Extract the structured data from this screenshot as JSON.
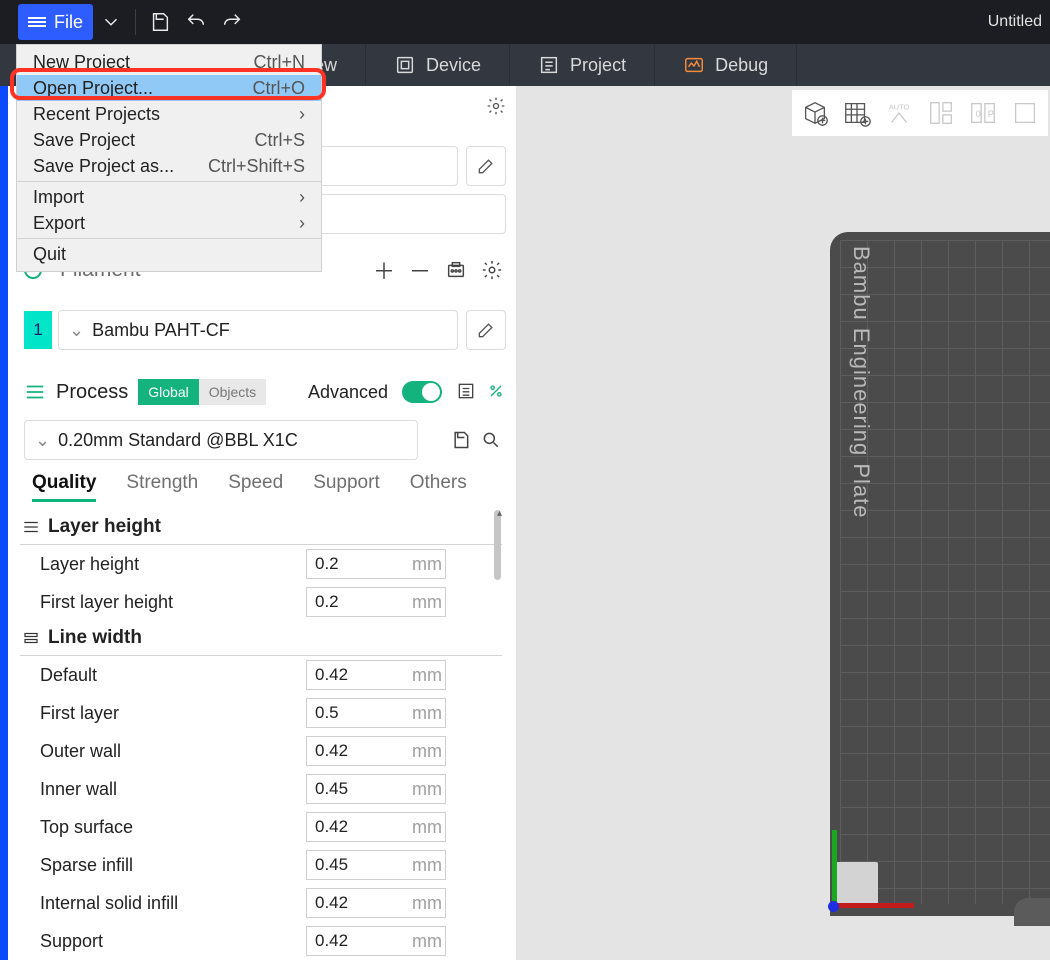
{
  "window": {
    "title": "Untitled"
  },
  "topbar": {
    "file_label": "File"
  },
  "file_menu": {
    "items": [
      {
        "label": "New Project",
        "shortcut": "Ctrl+N",
        "sub": false
      },
      {
        "label": "Open Project...",
        "shortcut": "Ctrl+O",
        "sub": false,
        "highlight": true
      },
      {
        "label": "Recent Projects",
        "shortcut": "",
        "sub": true
      },
      {
        "label": "Save Project",
        "shortcut": "Ctrl+S",
        "sub": false
      },
      {
        "label": "Save Project as...",
        "shortcut": "Ctrl+Shift+S",
        "sub": false
      },
      "---",
      {
        "label": "Import",
        "shortcut": "",
        "sub": true
      },
      {
        "label": "Export",
        "shortcut": "",
        "sub": true
      },
      "---",
      {
        "label": "Quit",
        "shortcut": "",
        "sub": false
      }
    ]
  },
  "nav": {
    "items": [
      {
        "label": "ew"
      },
      {
        "label": "Device"
      },
      {
        "label": "Project"
      },
      {
        "label": "Debug"
      }
    ]
  },
  "sidebar": {
    "filament_header": "Filament",
    "filament_index": "1",
    "filament_name": "Bambu PAHT-CF",
    "process_header": "Process",
    "pill_global": "Global",
    "pill_objects": "Objects",
    "advanced_label": "Advanced",
    "preset": "0.20mm Standard @BBL X1C",
    "tabs": [
      "Quality",
      "Strength",
      "Speed",
      "Support",
      "Others"
    ],
    "active_tab": 0,
    "sections": [
      {
        "title": "Layer height",
        "rows": [
          {
            "label": "Layer height",
            "value": "0.2",
            "unit": "mm"
          },
          {
            "label": "First layer height",
            "value": "0.2",
            "unit": "mm"
          }
        ]
      },
      {
        "title": "Line width",
        "rows": [
          {
            "label": "Default",
            "value": "0.42",
            "unit": "mm"
          },
          {
            "label": "First layer",
            "value": "0.5",
            "unit": "mm"
          },
          {
            "label": "Outer wall",
            "value": "0.42",
            "unit": "mm"
          },
          {
            "label": "Inner wall",
            "value": "0.45",
            "unit": "mm"
          },
          {
            "label": "Top surface",
            "value": "0.42",
            "unit": "mm"
          },
          {
            "label": "Sparse infill",
            "value": "0.45",
            "unit": "mm"
          },
          {
            "label": "Internal solid infill",
            "value": "0.42",
            "unit": "mm"
          },
          {
            "label": "Support",
            "value": "0.42",
            "unit": "mm"
          }
        ]
      }
    ]
  },
  "plate": {
    "text": "Bambu Engineering Plate"
  },
  "colors": {
    "accent_green": "#14b37d",
    "accent_orange": "#f58a3c",
    "highlight_blue": "#90c8f6",
    "cyan_swatch": "#00e4c8",
    "plate_bg": "#4b4b4b"
  }
}
